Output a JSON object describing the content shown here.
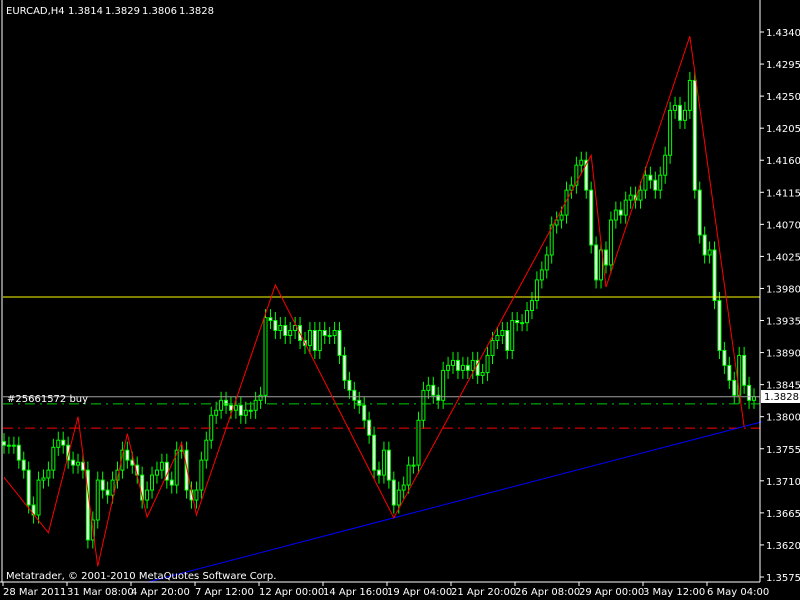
{
  "header": {
    "symbol": "EURCAD,H4",
    "open": "1.3814",
    "high": "1.3829",
    "low": "1.3806",
    "close": "1.3828"
  },
  "copyright": "Metatrader, © 2001-2010 MetaQuotes Software Corp.",
  "order_label": "#25661572 buy",
  "current_price_label": "1.3828",
  "colors": {
    "background": "#000000",
    "candle": "#00ff00",
    "bear_fill": "#ffffff",
    "zigzag": "#ff0000",
    "trendline": "#0000ff",
    "resistance": "#ffff00",
    "bid_line": "#a0a0a0",
    "order_line": "#00cc00",
    "stop_line": "#ff0000",
    "axis": "#ffffff"
  },
  "chart_data": {
    "type": "candlestick",
    "title": "EURCAD,H4",
    "ylim": [
      1.3575,
      1.434
    ],
    "y_ticks": [
      "1.4340",
      "1.4295",
      "1.4250",
      "1.4205",
      "1.4160",
      "1.4115",
      "1.4070",
      "1.4025",
      "1.3980",
      "1.3935",
      "1.3890",
      "1.3845",
      "1.3800",
      "1.3755",
      "1.3710",
      "1.3665",
      "1.3620",
      "1.3575"
    ],
    "x_ticks": [
      "28 Mar 2011",
      "31 Mar 08:00",
      "4 Apr 20:00",
      "7 Apr 12:00",
      "12 Apr 00:00",
      "14 Apr 16:00",
      "19 Apr 04:00",
      "21 Apr 20:00",
      "26 Apr 08:00",
      "29 Apr 00:00",
      "3 May 12:00",
      "6 May 04:00"
    ],
    "closes": [
      1.376,
      1.376,
      1.376,
      1.3739,
      1.3725,
      1.3676,
      1.3662,
      1.3711,
      1.3714,
      1.3725,
      1.3757,
      1.3767,
      1.376,
      1.3739,
      1.3732,
      1.3736,
      1.3725,
      1.3627,
      1.3655,
      1.3711,
      1.3697,
      1.369,
      1.3711,
      1.3725,
      1.3753,
      1.3739,
      1.3732,
      1.3718,
      1.3683,
      1.3697,
      1.3718,
      1.3725,
      1.3736,
      1.3711,
      1.3704,
      1.3753,
      1.3753,
      1.3697,
      1.3683,
      1.3697,
      1.3739,
      1.3767,
      1.3802,
      1.3809,
      1.3823,
      1.3816,
      1.3809,
      1.3816,
      1.3802,
      1.3809,
      1.3809,
      1.3823,
      1.383,
      1.3939,
      1.3935,
      1.3921,
      1.3928,
      1.3914,
      1.3921,
      1.3928,
      1.3907,
      1.39,
      1.3921,
      1.3893,
      1.3921,
      1.3914,
      1.3914,
      1.3921,
      1.3886,
      1.3851,
      1.3837,
      1.3823,
      1.3816,
      1.3795,
      1.3774,
      1.3725,
      1.3718,
      1.3753,
      1.3711,
      1.3676,
      1.3697,
      1.3704,
      1.3732,
      1.3732,
      1.3795,
      1.3837,
      1.3844,
      1.383,
      1.3823,
      1.3865,
      1.3872,
      1.3879,
      1.3865,
      1.3872,
      1.3865,
      1.3879,
      1.3858,
      1.3862,
      1.3886,
      1.3907,
      1.3914,
      1.3921,
      1.3893,
      1.3935,
      1.3932,
      1.3932,
      1.3949,
      1.3963,
      1.3992,
      1.4006,
      1.4027,
      1.4069,
      1.4076,
      1.4083,
      1.4118,
      1.4125,
      1.4153,
      1.416,
      1.4118,
      1.4041,
      1.3992,
      1.4034,
      1.4013,
      1.4076,
      1.409,
      1.4083,
      1.4104,
      1.4111,
      1.4104,
      1.4118,
      1.4139,
      1.4132,
      1.4118,
      1.4139,
      1.4167,
      1.423,
      1.4237,
      1.4216,
      1.423,
      1.4272,
      1.4118,
      1.4055,
      1.4027,
      1.4034,
      1.3963,
      1.3893,
      1.3872,
      1.3851,
      1.383,
      1.3886,
      1.3844,
      1.3823,
      1.3828
    ],
    "zigzag": [
      {
        "bar": 0,
        "price": 1.3715
      },
      {
        "bar": 9,
        "price": 1.3637
      },
      {
        "bar": 15,
        "price": 1.38
      },
      {
        "bar": 19,
        "price": 1.359
      },
      {
        "bar": 25,
        "price": 1.3776
      },
      {
        "bar": 29,
        "price": 1.3659
      },
      {
        "bar": 36,
        "price": 1.3763
      },
      {
        "bar": 39,
        "price": 1.3662
      },
      {
        "bar": 55,
        "price": 1.3985
      },
      {
        "bar": 79,
        "price": 1.3658
      },
      {
        "bar": 119,
        "price": 1.4167
      },
      {
        "bar": 122,
        "price": 1.3982
      },
      {
        "bar": 139,
        "price": 1.4334
      },
      {
        "bar": 150,
        "price": 1.3786
      }
    ],
    "trendline": [
      {
        "bar": 79,
        "price": 1.3658
      },
      {
        "bar": 152,
        "price": 1.379
      }
    ],
    "levels": {
      "resistance": 1.3968,
      "bid": 1.3828,
      "order_open": 1.3818,
      "stop_loss": 1.3784
    }
  }
}
